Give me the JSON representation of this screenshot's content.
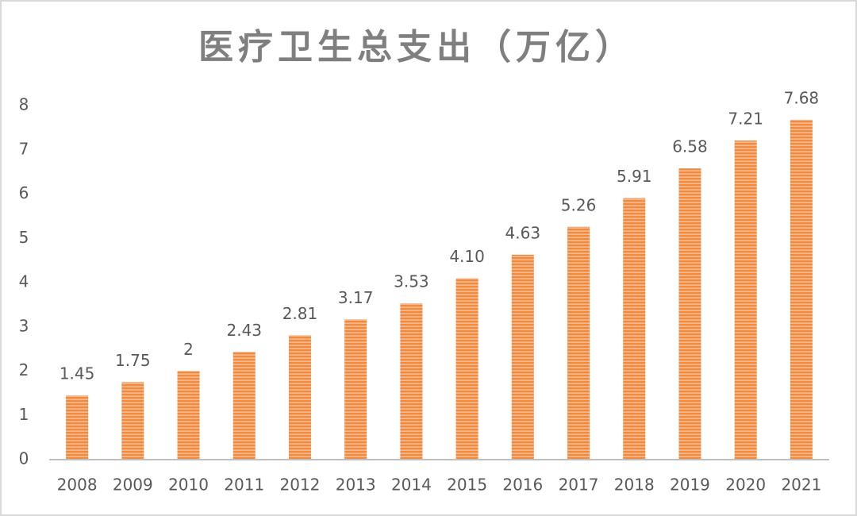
{
  "chart_data": {
    "type": "bar",
    "title": "医疗卫生总支出（万亿）",
    "categories": [
      "2008",
      "2009",
      "2010",
      "2011",
      "2012",
      "2013",
      "2014",
      "2015",
      "2016",
      "2017",
      "2018",
      "2019",
      "2020",
      "2021"
    ],
    "values": [
      1.45,
      1.75,
      2,
      2.43,
      2.81,
      3.17,
      3.53,
      4.1,
      4.63,
      5.26,
      5.91,
      6.58,
      7.21,
      7.68
    ],
    "value_labels": [
      "1.45",
      "1.75",
      "2",
      "2.43",
      "2.81",
      "3.17",
      "3.53",
      "4.10",
      "4.63",
      "5.26",
      "5.91",
      "6.58",
      "7.21",
      "7.68"
    ],
    "color": "#ef8a3f",
    "ylim": [
      0,
      8
    ],
    "yticks": [
      0,
      1,
      2,
      3,
      4,
      5,
      6,
      7,
      8
    ],
    "grid": false
  }
}
